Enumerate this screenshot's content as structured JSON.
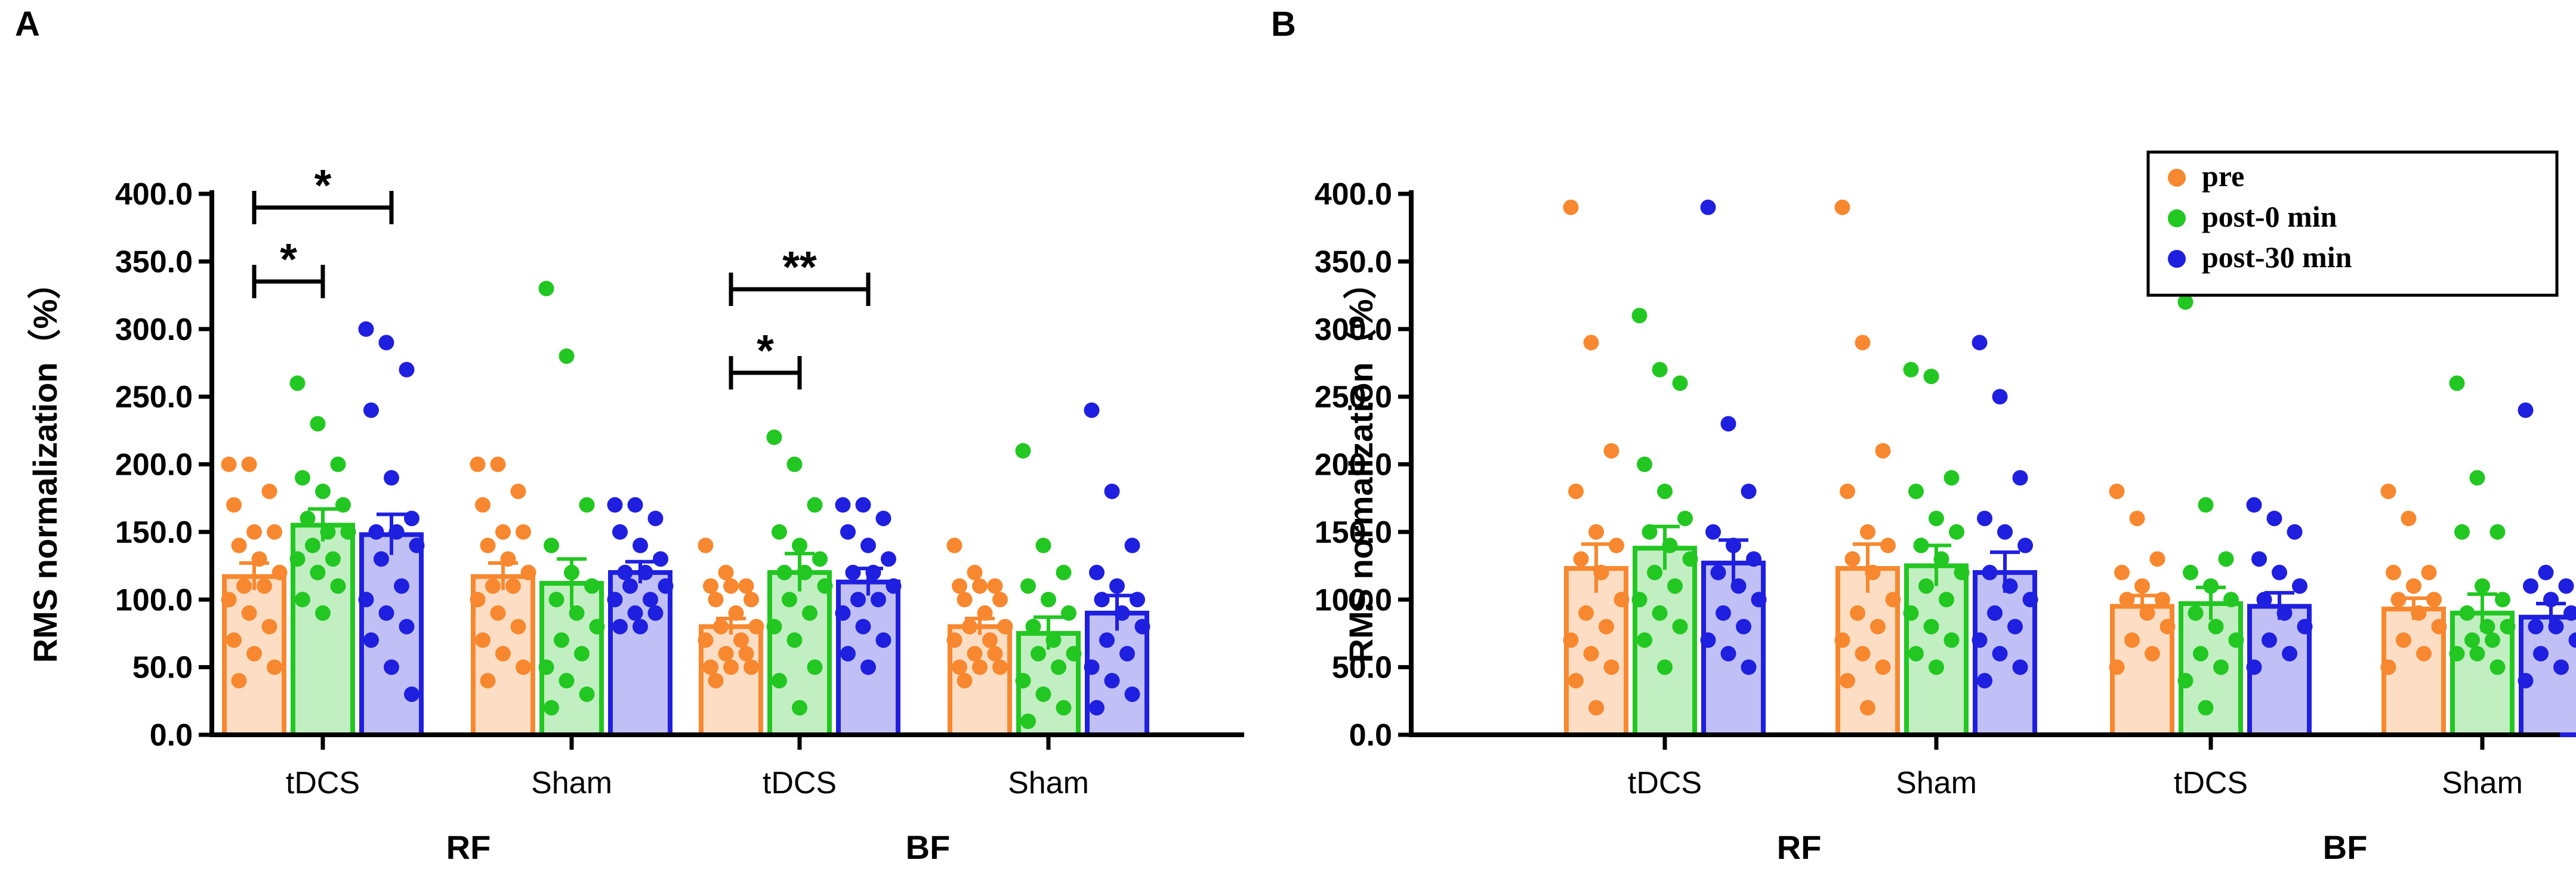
{
  "colors": {
    "pre": "#F7882F",
    "post0": "#22C722",
    "post30": "#1F1FE0",
    "axis": "#000000"
  },
  "legend": {
    "items": [
      {
        "key": "pre",
        "label": "pre"
      },
      {
        "key": "post0",
        "label": "post-0 min"
      },
      {
        "key": "post30",
        "label": "post-30 min"
      }
    ]
  },
  "chart_data": [
    {
      "panel": "A",
      "type": "bar",
      "ylabel": "RMS normalization（%）",
      "ylim": [
        0,
        400
      ],
      "yticks": [
        "0.0",
        "50.0",
        "100.0",
        "150.0",
        "200.0",
        "250.0",
        "300.0",
        "350.0",
        "400.0"
      ],
      "group_labels": [
        "RF",
        "BF"
      ],
      "categories": [
        "tDCS",
        "Sham",
        "tDCS",
        "Sham"
      ],
      "category_groups": [
        0,
        0,
        1,
        1
      ],
      "series": [
        {
          "name": "pre",
          "key": "pre",
          "values": [
            117,
            117,
            80,
            80
          ],
          "sem": [
            10,
            10,
            6,
            6
          ],
          "points": [
            [
              200,
              200,
              180,
              170,
              150,
              150,
              140,
              130,
              120,
              110,
              110,
              100,
              90,
              80,
              70,
              60,
              50,
              40
            ],
            [
              200,
              200,
              180,
              170,
              150,
              150,
              140,
              130,
              120,
              110,
              110,
              100,
              90,
              80,
              70,
              60,
              50,
              40
            ],
            [
              140,
              120,
              110,
              110,
              110,
              100,
              100,
              90,
              80,
              80,
              70,
              70,
              60,
              60,
              50,
              50,
              50,
              40
            ],
            [
              140,
              120,
              110,
              110,
              110,
              100,
              100,
              90,
              80,
              80,
              70,
              70,
              60,
              60,
              50,
              50,
              50,
              40
            ]
          ]
        },
        {
          "name": "post-0 min",
          "key": "post0",
          "values": [
            155,
            112,
            120,
            75
          ],
          "sem": [
            12,
            18,
            14,
            12
          ],
          "points": [
            [
              260,
              230,
              200,
              190,
              180,
              170,
              160,
              150,
              150,
              140,
              130,
              130,
              120,
              110,
              100,
              90
            ],
            [
              330,
              280,
              170,
              140,
              120,
              110,
              100,
              90,
              80,
              70,
              60,
              50,
              40,
              30,
              20
            ],
            [
              220,
              200,
              170,
              150,
              140,
              130,
              120,
              120,
              110,
              100,
              90,
              80,
              70,
              50,
              40,
              20
            ],
            [
              210,
              140,
              120,
              110,
              100,
              90,
              80,
              70,
              60,
              60,
              50,
              40,
              30,
              20,
              10
            ]
          ]
        },
        {
          "name": "post-30 min",
          "key": "post30",
          "values": [
            148,
            120,
            113,
            90
          ],
          "sem": [
            15,
            8,
            10,
            13
          ],
          "points": [
            [
              300,
              290,
              270,
              240,
              190,
              160,
              150,
              150,
              140,
              130,
              110,
              100,
              90,
              80,
              70,
              50,
              30
            ],
            [
              170,
              170,
              160,
              150,
              140,
              130,
              120,
              120,
              110,
              110,
              100,
              100,
              90,
              90,
              80,
              80
            ],
            [
              170,
              170,
              160,
              150,
              140,
              130,
              120,
              120,
              110,
              100,
              100,
              90,
              80,
              70,
              60,
              50
            ],
            [
              240,
              180,
              140,
              120,
              110,
              100,
              100,
              90,
              80,
              70,
              60,
              50,
              40,
              30,
              20
            ]
          ]
        }
      ],
      "significance": [
        {
          "group": 0,
          "from_series": 0,
          "to_series": 1,
          "label": "*",
          "level": 2
        },
        {
          "group": 0,
          "from_series": 0,
          "to_series": 2,
          "label": "*",
          "level": 1
        },
        {
          "group": 2,
          "from_series": 0,
          "to_series": 1,
          "label": "*",
          "level": 2
        },
        {
          "group": 2,
          "from_series": 0,
          "to_series": 2,
          "label": "**",
          "level": 1
        }
      ]
    },
    {
      "panel": "B",
      "type": "bar",
      "ylabel": "RMS normalization（%）",
      "ylim": [
        0,
        400
      ],
      "yticks": [
        "0.0",
        "50.0",
        "100.0",
        "150.0",
        "200.0",
        "250.0",
        "300.0",
        "350.0",
        "400.0"
      ],
      "group_labels": [
        "RF",
        "BF"
      ],
      "categories": [
        "tDCS",
        "Sham",
        "tDCS",
        "Sham"
      ],
      "category_groups": [
        0,
        0,
        1,
        1
      ],
      "series": [
        {
          "name": "pre",
          "key": "pre",
          "values": [
            123,
            123,
            95,
            93
          ],
          "sem": [
            18,
            18,
            8,
            8
          ],
          "points": [
            [
              390,
              290,
              210,
              180,
              150,
              140,
              130,
              120,
              100,
              90,
              80,
              70,
              60,
              50,
              40,
              20
            ],
            [
              390,
              290,
              210,
              180,
              150,
              140,
              130,
              120,
              100,
              90,
              80,
              70,
              60,
              50,
              40,
              20
            ],
            [
              180,
              160,
              130,
              120,
              110,
              100,
              100,
              90,
              80,
              70,
              60,
              50
            ],
            [
              180,
              160,
              120,
              120,
              110,
              100,
              100,
              90,
              80,
              70,
              60,
              50
            ]
          ]
        },
        {
          "name": "post-0 min",
          "key": "post0",
          "values": [
            138,
            125,
            97,
            90
          ],
          "sem": [
            16,
            15,
            12,
            14
          ],
          "points": [
            [
              310,
              270,
              260,
              200,
              180,
              160,
              150,
              140,
              130,
              120,
              110,
              100,
              90,
              80,
              70,
              50
            ],
            [
              270,
              265,
              190,
              180,
              160,
              150,
              140,
              130,
              120,
              110,
              100,
              90,
              80,
              70,
              60,
              50
            ],
            [
              320,
              170,
              130,
              120,
              110,
              100,
              90,
              80,
              70,
              60,
              50,
              40,
              20
            ],
            [
              260,
              190,
              150,
              150,
              110,
              100,
              90,
              80,
              80,
              70,
              70,
              60,
              60,
              50
            ]
          ]
        },
        {
          "name": "post-30 min",
          "key": "post30",
          "values": [
            127,
            120,
            95,
            87
          ],
          "sem": [
            17,
            15,
            10,
            10
          ],
          "points": [
            [
              390,
              230,
              180,
              150,
              140,
              130,
              120,
              110,
              100,
              90,
              80,
              70,
              60,
              50
            ],
            [
              290,
              250,
              190,
              160,
              150,
              140,
              120,
              110,
              100,
              90,
              80,
              70,
              60,
              50,
              40
            ],
            [
              170,
              160,
              150,
              130,
              120,
              110,
              100,
              90,
              80,
              70,
              60,
              50
            ],
            [
              240,
              120,
              110,
              110,
              100,
              90,
              80,
              80,
              70,
              60,
              50,
              40
            ]
          ]
        }
      ]
    }
  ]
}
